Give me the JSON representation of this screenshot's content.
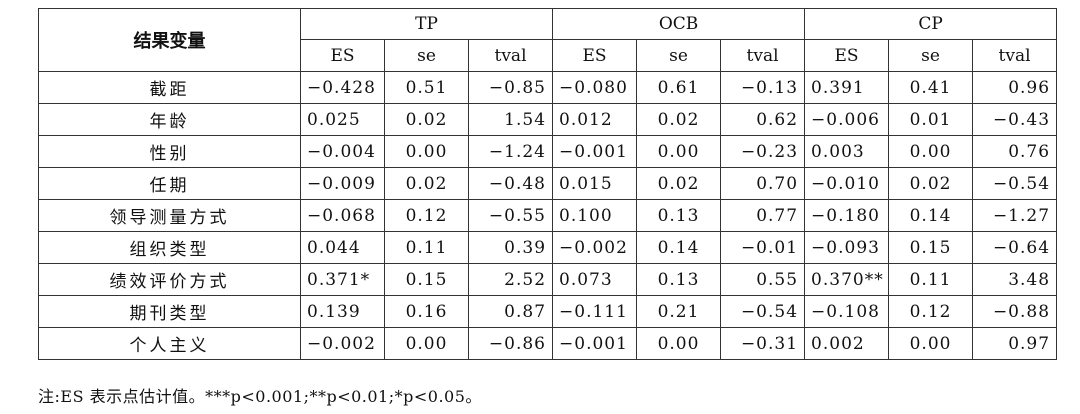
{
  "header": {
    "row_label": "结果变量",
    "groups": [
      "TP",
      "OCB",
      "CP"
    ],
    "sub": [
      "ES",
      "se",
      "tval",
      "ES",
      "se",
      "tval",
      "ES",
      "se",
      "tval"
    ]
  },
  "rows": [
    {
      "label": "截距",
      "values": [
        "−0.428",
        "0.51",
        "−0.85",
        "−0.080",
        "0.61",
        "−0.13",
        "0.391",
        "0.41",
        "0.96"
      ]
    },
    {
      "label": "年龄",
      "values": [
        "0.025",
        "0.02",
        "1.54",
        "0.012",
        "0.02",
        "0.62",
        "−0.006",
        "0.01",
        "−0.43"
      ]
    },
    {
      "label": "性别",
      "values": [
        "−0.004",
        "0.00",
        "−1.24",
        "−0.001",
        "0.00",
        "−0.23",
        "0.003",
        "0.00",
        "0.76"
      ]
    },
    {
      "label": "任期",
      "values": [
        "−0.009",
        "0.02",
        "−0.48",
        "0.015",
        "0.02",
        "0.70",
        "−0.010",
        "0.02",
        "−0.54"
      ]
    },
    {
      "label": "领导测量方式",
      "values": [
        "−0.068",
        "0.12",
        "−0.55",
        "0.100",
        "0.13",
        "0.77",
        "−0.180",
        "0.14",
        "−1.27"
      ]
    },
    {
      "label": "组织类型",
      "values": [
        "0.044",
        "0.11",
        "0.39",
        "−0.002",
        "0.14",
        "−0.01",
        "−0.093",
        "0.15",
        "−0.64"
      ]
    },
    {
      "label": "绩效评价方式",
      "values": [
        "0.371*",
        "0.15",
        "2.52",
        "0.073",
        "0.13",
        "0.55",
        "0.370**",
        "0.11",
        "3.48"
      ]
    },
    {
      "label": "期刊类型",
      "values": [
        "0.139",
        "0.16",
        "0.87",
        "−0.111",
        "0.21",
        "−0.54",
        "−0.108",
        "0.12",
        "−0.88"
      ]
    },
    {
      "label": "个人主义",
      "values": [
        "−0.002",
        "0.00",
        "−0.86",
        "−0.001",
        "0.00",
        "−0.31",
        "0.002",
        "0.00",
        "0.97"
      ]
    }
  ],
  "note": "注:ES 表示点估计值。***p<0.001;**p<0.01;*p<0.05。"
}
